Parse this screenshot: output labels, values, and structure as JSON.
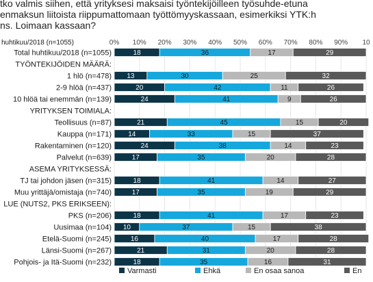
{
  "title_lines": [
    "tko valmis siihen, että yrityksesi maksaisi työntekijöilleen työsuhde-etuna",
    "enmaksun liitoista riippumattomaan työttömyyskassaan, esimerkiksi YTK:h",
    "ns. Loimaan kassaan?"
  ],
  "colors": {
    "Varmasti": "#0d3548",
    "Ehkä": "#16a8dc",
    "En osaa sanoa": "#b8b8b8",
    "En": "#595959"
  },
  "chart_data": {
    "type": "bar",
    "orientation": "horizontal",
    "stacked": true,
    "axis_title": "l huhtikuu/2018 (n=1055)",
    "x_ticks": [
      "0%",
      "10%",
      "20%",
      "30%",
      "40%",
      "50%",
      "60%",
      "70%",
      "80%",
      "90%",
      "10"
    ],
    "xlim": [
      0,
      100
    ],
    "grid": true,
    "legend_position": "bottom",
    "series_names": [
      "Varmasti",
      "Ehkä",
      "En osaa sanoa",
      "En"
    ],
    "rows": [
      {
        "label": "Total huhtikuu/2018 (n=1055)",
        "values": [
          18,
          36,
          17,
          29
        ]
      },
      {
        "label": "TYÖNTEKIJÖIDEN MÄÄRÄ:",
        "header": true
      },
      {
        "label": "1 hlö (n=478)",
        "values": [
          13,
          30,
          25,
          32
        ]
      },
      {
        "label": "2-9 hlöä (n=437)",
        "values": [
          20,
          42,
          11,
          26
        ]
      },
      {
        "label": "10 hlöä tai enemmän (n=139)",
        "values": [
          24,
          41,
          9,
          26
        ]
      },
      {
        "label": "YRITYKSEN TOIMIALA:",
        "header": true
      },
      {
        "label": "Teollisuus (n=87)",
        "values": [
          21,
          45,
          15,
          20
        ]
      },
      {
        "label": "Kauppa (n=171)",
        "values": [
          14,
          33,
          15,
          37
        ]
      },
      {
        "label": "Rakentaminen (n=120)",
        "values": [
          24,
          38,
          14,
          23
        ]
      },
      {
        "label": "Palvelut (n=639)",
        "values": [
          17,
          35,
          20,
          28
        ]
      },
      {
        "label": "ASEMA YRITYKSESSÄ:",
        "header": true
      },
      {
        "label": "TJ tai johdon jäsen (n=315)",
        "values": [
          18,
          41,
          14,
          27
        ]
      },
      {
        "label": "Muu yrittäjä/omistaja (n=740)",
        "values": [
          17,
          35,
          19,
          29
        ]
      },
      {
        "label": "LUE (NUTS2, PKS ERIKSEEN):",
        "header": true
      },
      {
        "label": "PKS (n=206)",
        "values": [
          18,
          41,
          17,
          23
        ]
      },
      {
        "label": "Uusimaa (n=104)",
        "values": [
          10,
          37,
          15,
          38
        ]
      },
      {
        "label": "Etelä-Suomi (n=245)",
        "values": [
          16,
          40,
          17,
          28
        ]
      },
      {
        "label": "Länsi-Suomi (n=267)",
        "values": [
          21,
          31,
          20,
          28
        ]
      },
      {
        "label": "Pohjois- ja Itä-Suomi (n=232)",
        "values": [
          18,
          35,
          16,
          31
        ]
      }
    ]
  }
}
